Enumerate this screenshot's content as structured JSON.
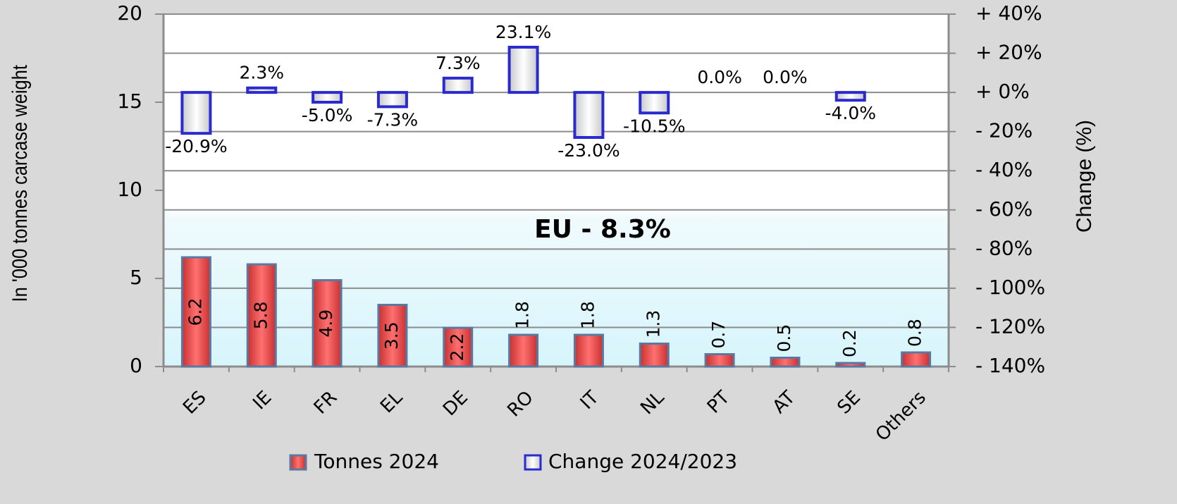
{
  "chart_data": {
    "type": "bar",
    "y_label": "In '000 tonnes  carcase  weight",
    "y2_label": "Change  (%)",
    "annotation": "EU  - 8.3%",
    "categories": [
      "ES",
      "IE",
      "FR",
      "EL",
      "DE",
      "RO",
      "IT",
      "NL",
      "PT",
      "AT",
      "SE",
      "Others"
    ],
    "series": [
      {
        "name": "Tonnes 2024",
        "color": "#f05050",
        "values": [
          6.2,
          5.8,
          4.9,
          3.5,
          2.2,
          1.8,
          1.8,
          1.3,
          0.7,
          0.5,
          0.2,
          0.8
        ]
      },
      {
        "name": "Change 2024/2023",
        "color": "#2a2ad0",
        "axis": "y2",
        "values": [
          -20.9,
          2.3,
          -5.0,
          -7.3,
          7.3,
          23.1,
          -23.0,
          -10.5,
          0.0,
          0.0,
          -4.0,
          null
        ],
        "value_labels": [
          "-20.9%",
          "2.3%",
          "-5.0%",
          "-7.3%",
          "7.3%",
          "23.1%",
          "-23.0%",
          "-10.5%",
          "0.0%",
          "0.0%",
          "-4.0%",
          null
        ]
      }
    ],
    "ylim": [
      0,
      20
    ],
    "yticks": [
      0,
      5,
      10,
      15,
      20
    ],
    "y2lim": [
      -140,
      40
    ],
    "y2ticks": [
      {
        "value": -140,
        "label": "- 140%"
      },
      {
        "value": -120,
        "label": "- 120%"
      },
      {
        "value": -100,
        "label": "- 100%"
      },
      {
        "value": -80,
        "label": "- 80%"
      },
      {
        "value": -60,
        "label": "- 60%"
      },
      {
        "value": -40,
        "label": "- 40%"
      },
      {
        "value": -20,
        "label": "- 20%"
      },
      {
        "value": 0,
        "label": "+ 0%"
      },
      {
        "value": 20,
        "label": "+ 20%"
      },
      {
        "value": 40,
        "label": "+ 40%"
      }
    ],
    "grid": true,
    "legend": "bottom"
  }
}
